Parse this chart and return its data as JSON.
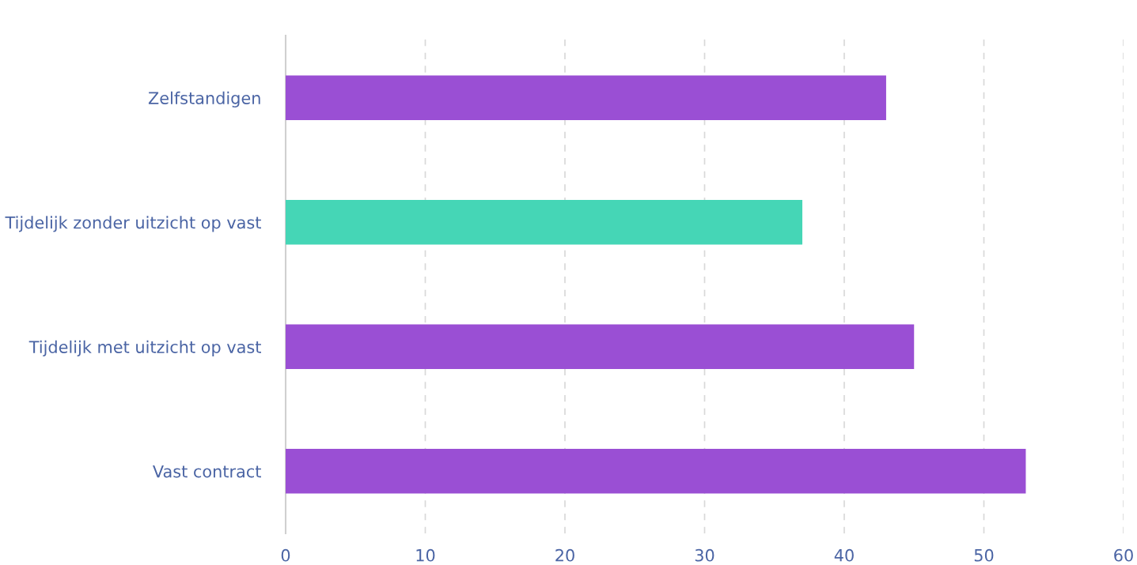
{
  "chart_data": {
    "type": "bar",
    "orientation": "horizontal",
    "categories": [
      "Zelfstandigen",
      "Tijdelijk zonder uitzicht op vast",
      "Tijdelijk met uitzicht op vast",
      "Vast contract"
    ],
    "values": [
      43,
      37,
      45,
      53
    ],
    "colors": [
      "#9a4fd4",
      "#45d6b6",
      "#9a4fd4",
      "#9a4fd4"
    ],
    "xlim": [
      0,
      60
    ],
    "xticks": [
      0,
      10,
      20,
      30,
      40,
      50,
      60
    ],
    "grid": "x",
    "legend": false
  }
}
